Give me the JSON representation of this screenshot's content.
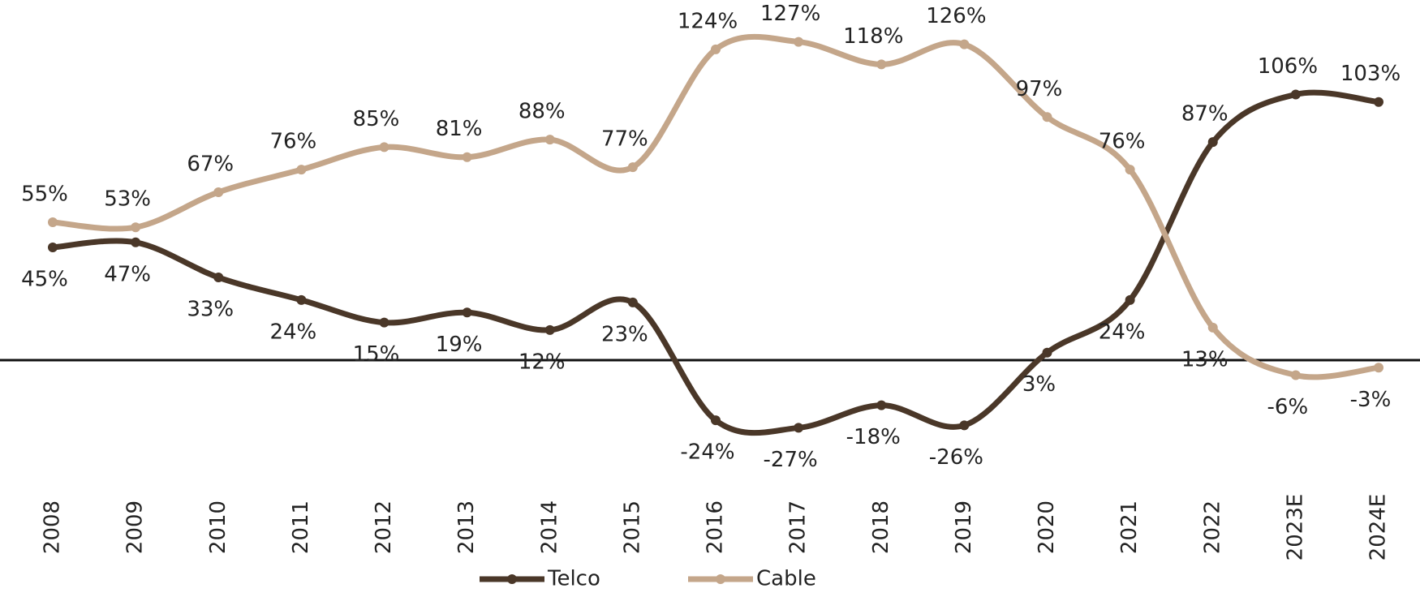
{
  "chart_data": {
    "type": "line",
    "categories": [
      "2008",
      "2009",
      "2010",
      "2011",
      "2012",
      "2013",
      "2014",
      "2015",
      "2016",
      "2017",
      "2018",
      "2019",
      "2020",
      "2021",
      "2022",
      "2023E",
      "2024E"
    ],
    "series": [
      {
        "name": "Telco",
        "color": "#4a3728",
        "values": [
          45,
          47,
          33,
          24,
          15,
          19,
          12,
          23,
          -24,
          -27,
          -18,
          -26,
          3,
          24,
          87,
          106,
          103
        ],
        "value_labels": [
          "45%",
          "47%",
          "33%",
          "24%",
          "15%",
          "19%",
          "12%",
          "23%",
          "-24%",
          "-27%",
          "-18%",
          "-26%",
          "3%",
          "24%",
          "87%",
          "106%",
          "103%"
        ]
      },
      {
        "name": "Cable",
        "color": "#c4a68a",
        "values": [
          55,
          53,
          67,
          76,
          85,
          81,
          88,
          77,
          124,
          127,
          118,
          126,
          97,
          76,
          13,
          -6,
          -3
        ],
        "value_labels": [
          "55%",
          "53%",
          "67%",
          "76%",
          "85%",
          "81%",
          "88%",
          "77%",
          "124%",
          "127%",
          "118%",
          "126%",
          "97%",
          "76%",
          "13%",
          "-6%",
          "-3%"
        ]
      }
    ],
    "ylim": [
      -40,
      140
    ],
    "legend": "bottom"
  }
}
